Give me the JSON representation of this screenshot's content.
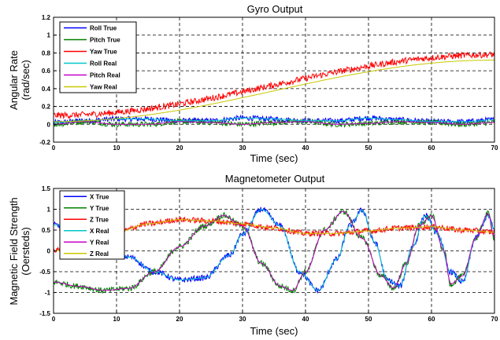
{
  "chart_data": [
    {
      "type": "line",
      "title": "Gyro Output",
      "xlabel": "Time (sec)",
      "ylabel_lines": [
        "Angular Rate",
        "(rad/sec)"
      ],
      "xlim": [
        0,
        70
      ],
      "ylim": [
        -0.2,
        1.2
      ],
      "xticks": [
        0,
        10,
        20,
        30,
        40,
        50,
        60,
        70
      ],
      "yticks": [
        -0.2,
        0,
        0.2,
        0.4,
        0.6,
        0.8,
        1,
        1.2
      ],
      "ytick_labels": [
        "-0.2",
        "0",
        "0.2",
        "0.4",
        "0.6",
        "0.8",
        "1",
        "1.2"
      ],
      "grid": true,
      "legend_position": "top-left",
      "series": [
        {
          "name": "Roll True",
          "color": "#0000ff",
          "noise": 0.03,
          "style": "noisy",
          "x": [
            0,
            5,
            10,
            15,
            20,
            25,
            30,
            35,
            40,
            45,
            50,
            55,
            60,
            65,
            70
          ],
          "y": [
            0.02,
            0.04,
            0.06,
            0.06,
            0.04,
            0.04,
            0.07,
            0.06,
            0.04,
            0.04,
            0.07,
            0.05,
            0.03,
            0.03,
            0.05
          ]
        },
        {
          "name": "Pitch True",
          "color": "#008000",
          "noise": 0.03,
          "style": "noisy",
          "x": [
            0,
            5,
            10,
            15,
            20,
            25,
            30,
            35,
            40,
            45,
            50,
            55,
            60,
            65,
            70
          ],
          "y": [
            0.0,
            0.03,
            0.0,
            0.0,
            0.03,
            0.02,
            0.0,
            0.02,
            0.03,
            0.0,
            0.01,
            0.03,
            0.02,
            0.0,
            0.02
          ]
        },
        {
          "name": "Yaw True",
          "color": "#ff0000",
          "noise": 0.035,
          "style": "noisy",
          "x": [
            0,
            70
          ],
          "y": [
            0.1,
            0.78
          ]
        },
        {
          "name": "Roll Real",
          "color": "#00c8c8",
          "noise": 0,
          "style": "line",
          "x": [
            0,
            5,
            10,
            15,
            20,
            25,
            30,
            35,
            40,
            45,
            50,
            55,
            60,
            65,
            70
          ],
          "y": [
            0.02,
            0.04,
            0.06,
            0.06,
            0.04,
            0.04,
            0.07,
            0.06,
            0.04,
            0.04,
            0.07,
            0.05,
            0.03,
            0.03,
            0.05
          ]
        },
        {
          "name": "Pitch Real",
          "color": "#c800c8",
          "noise": 0,
          "style": "line",
          "x": [
            0,
            5,
            10,
            15,
            20,
            25,
            30,
            35,
            40,
            45,
            50,
            55,
            60,
            65,
            70
          ],
          "y": [
            0.0,
            0.03,
            0.0,
            0.0,
            0.03,
            0.02,
            0.0,
            0.02,
            0.03,
            0.0,
            0.01,
            0.03,
            0.02,
            0.0,
            0.02
          ]
        },
        {
          "name": "Yaw Real",
          "color": "#c8c800",
          "noise": 0,
          "style": "line",
          "x": [
            0,
            70
          ],
          "y": [
            0.03,
            0.72
          ]
        }
      ]
    },
    {
      "type": "line",
      "title": "Magnetometer Output",
      "xlabel": "Time (sec)",
      "ylabel_lines": [
        "Magnetic Field Strength",
        "(Oersteds)"
      ],
      "xlim": [
        0,
        70
      ],
      "ylim": [
        -1.5,
        1.5
      ],
      "xticks": [
        0,
        10,
        20,
        30,
        40,
        50,
        60,
        70
      ],
      "yticks": [
        -1.5,
        -1,
        -0.5,
        0,
        0.5,
        1,
        1.5
      ],
      "ytick_labels": [
        "-1.5",
        "-1",
        "-0.5",
        "0",
        "0.5",
        "1",
        "1.5"
      ],
      "grid": true,
      "legend_position": "top-left",
      "series": [
        {
          "name": "X True",
          "color": "#0000ff",
          "noise": 0.07,
          "style": "noisy",
          "x": [
            0,
            4,
            8,
            12,
            16,
            20,
            24,
            28,
            30,
            33,
            36,
            39,
            42,
            45,
            47,
            49,
            51,
            53,
            55,
            57,
            59,
            61,
            63,
            65,
            67,
            69,
            70
          ],
          "y": [
            0.62,
            0.55,
            0.25,
            -0.15,
            -0.5,
            -0.7,
            -0.65,
            -0.1,
            0.4,
            1.0,
            0.6,
            -0.5,
            -0.95,
            -0.2,
            0.6,
            0.98,
            0.2,
            -0.7,
            -0.85,
            0.1,
            0.85,
            0.4,
            -0.5,
            -0.75,
            0.3,
            0.85,
            0.5
          ]
        },
        {
          "name": "Y True",
          "color": "#008000",
          "noise": 0.07,
          "style": "noisy",
          "x": [
            0,
            4,
            8,
            12,
            16,
            20,
            24,
            27,
            30,
            33,
            36,
            38,
            40,
            43,
            46,
            49,
            52,
            54,
            56,
            58,
            60,
            62,
            63,
            65,
            67,
            69,
            70
          ],
          "y": [
            -0.75,
            -0.85,
            -0.95,
            -0.9,
            -0.5,
            0.1,
            0.6,
            0.85,
            0.6,
            -0.3,
            -0.85,
            -0.95,
            -0.5,
            0.5,
            0.95,
            0.3,
            -0.6,
            -0.9,
            -0.3,
            0.6,
            0.85,
            0.0,
            -0.8,
            -0.6,
            0.3,
            0.9,
            0.3
          ]
        },
        {
          "name": "Z True",
          "color": "#ff0000",
          "noise": 0.07,
          "style": "noisy",
          "x": [
            0,
            5,
            10,
            15,
            20,
            25,
            30,
            35,
            40,
            45,
            50,
            55,
            60,
            65,
            70
          ],
          "y": [
            0.0,
            0.15,
            0.45,
            0.65,
            0.75,
            0.72,
            0.65,
            0.55,
            0.42,
            0.42,
            0.48,
            0.55,
            0.58,
            0.5,
            0.45
          ]
        },
        {
          "name": "X Real",
          "color": "#00c8c8",
          "noise": 0,
          "style": "line",
          "x": [
            0,
            4,
            8,
            12,
            16,
            20,
            24,
            28,
            30,
            33,
            36,
            39,
            42,
            45,
            47,
            49,
            51,
            53,
            55,
            57,
            59,
            61,
            63,
            65,
            67,
            69,
            70
          ],
          "y": [
            0.62,
            0.55,
            0.25,
            -0.15,
            -0.5,
            -0.7,
            -0.65,
            -0.1,
            0.4,
            1.0,
            0.6,
            -0.5,
            -0.95,
            -0.2,
            0.6,
            0.98,
            0.2,
            -0.7,
            -0.85,
            0.1,
            0.85,
            0.4,
            -0.5,
            -0.75,
            0.3,
            0.85,
            0.5
          ]
        },
        {
          "name": "Y Real",
          "color": "#c800c8",
          "noise": 0,
          "style": "line",
          "x": [
            0,
            4,
            8,
            12,
            16,
            20,
            24,
            27,
            30,
            33,
            36,
            38,
            40,
            43,
            46,
            49,
            52,
            54,
            56,
            58,
            60,
            62,
            63,
            65,
            67,
            69,
            70
          ],
          "y": [
            -0.75,
            -0.85,
            -0.95,
            -0.9,
            -0.5,
            0.1,
            0.6,
            0.85,
            0.6,
            -0.3,
            -0.85,
            -0.95,
            -0.5,
            0.5,
            0.95,
            0.3,
            -0.6,
            -0.9,
            -0.3,
            0.6,
            0.85,
            0.0,
            -0.8,
            -0.6,
            0.3,
            0.9,
            0.3
          ]
        },
        {
          "name": "Z Real",
          "color": "#c8c800",
          "noise": 0,
          "style": "line",
          "x": [
            0,
            5,
            10,
            15,
            20,
            25,
            30,
            35,
            40,
            45,
            50,
            55,
            60,
            65,
            70
          ],
          "y": [
            0.0,
            0.15,
            0.45,
            0.65,
            0.75,
            0.72,
            0.65,
            0.55,
            0.42,
            0.42,
            0.48,
            0.55,
            0.58,
            0.5,
            0.45
          ]
        }
      ]
    }
  ]
}
